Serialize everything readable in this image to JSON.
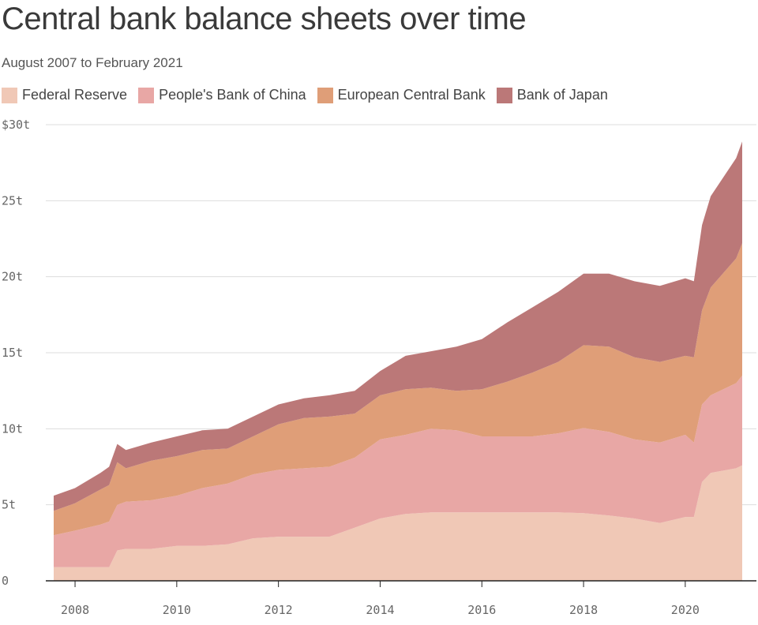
{
  "header": {
    "title": "Central bank balance sheets over time",
    "subtitle": "August 2007 to February 2021"
  },
  "colors": {
    "fed": "#f0c8b6",
    "pboc": "#e8a7a5",
    "ecb": "#df9e78",
    "boj": "#bb7878",
    "grid": "#dddddd",
    "axis": "#222222"
  },
  "chart_data": {
    "type": "area",
    "stacked": true,
    "title": "Central bank balance sheets over time",
    "subtitle": "August 2007 to February 2021",
    "xlabel": "",
    "ylabel": "",
    "xlim": [
      2007.58,
      2021.12
    ],
    "ylim": [
      0,
      30
    ],
    "x_ticks": [
      2008,
      2010,
      2012,
      2014,
      2016,
      2018,
      2020
    ],
    "x_tick_labels": [
      "2008",
      "2010",
      "2012",
      "2014",
      "2016",
      "2018",
      "2020"
    ],
    "y_ticks": [
      0,
      5,
      10,
      15,
      20,
      25,
      30
    ],
    "y_tick_labels": [
      "0",
      "5t",
      "10t",
      "15t",
      "20t",
      "25t",
      "$30t"
    ],
    "grid": true,
    "legend": "top",
    "x": [
      2007.58,
      2008.0,
      2008.5,
      2008.67,
      2008.83,
      2009.0,
      2009.5,
      2010.0,
      2010.5,
      2011.0,
      2011.5,
      2012.0,
      2012.5,
      2013.0,
      2013.5,
      2014.0,
      2014.5,
      2015.0,
      2015.5,
      2016.0,
      2016.5,
      2017.0,
      2017.5,
      2018.0,
      2018.5,
      2019.0,
      2019.5,
      2020.0,
      2020.17,
      2020.33,
      2020.5,
      2021.0,
      2021.12
    ],
    "series": [
      {
        "name": "Federal Reserve",
        "color_key": "fed",
        "values": [
          0.9,
          0.9,
          0.9,
          0.9,
          2.0,
          2.1,
          2.1,
          2.3,
          2.3,
          2.4,
          2.8,
          2.9,
          2.9,
          2.9,
          3.5,
          4.1,
          4.4,
          4.5,
          4.5,
          4.5,
          4.5,
          4.5,
          4.5,
          4.45,
          4.3,
          4.1,
          3.8,
          4.2,
          4.2,
          6.5,
          7.1,
          7.4,
          7.6
        ]
      },
      {
        "name": "People's Bank of China",
        "color_key": "pboc",
        "values": [
          2.1,
          2.4,
          2.8,
          3.0,
          3.0,
          3.1,
          3.2,
          3.3,
          3.8,
          4.0,
          4.2,
          4.4,
          4.5,
          4.6,
          4.6,
          5.2,
          5.2,
          5.5,
          5.4,
          5.0,
          5.0,
          5.0,
          5.2,
          5.6,
          5.5,
          5.2,
          5.3,
          5.4,
          4.9,
          5.1,
          5.1,
          5.6,
          5.9
        ]
      },
      {
        "name": "European Central Bank",
        "color_key": "ecb",
        "values": [
          1.6,
          1.8,
          2.3,
          2.4,
          2.8,
          2.2,
          2.6,
          2.6,
          2.5,
          2.3,
          2.5,
          3.0,
          3.3,
          3.3,
          2.9,
          2.9,
          3.0,
          2.7,
          2.6,
          3.1,
          3.6,
          4.2,
          4.7,
          5.45,
          5.6,
          5.4,
          5.3,
          5.2,
          5.6,
          6.2,
          7.1,
          8.2,
          8.7
        ]
      },
      {
        "name": "Bank of Japan",
        "color_key": "boj",
        "values": [
          1.0,
          1.0,
          1.1,
          1.2,
          1.2,
          1.2,
          1.2,
          1.3,
          1.3,
          1.3,
          1.3,
          1.3,
          1.3,
          1.4,
          1.5,
          1.6,
          2.2,
          2.4,
          2.9,
          3.3,
          3.9,
          4.3,
          4.6,
          4.7,
          4.8,
          5.0,
          5.0,
          5.1,
          5.0,
          5.6,
          6.0,
          6.6,
          6.7
        ]
      }
    ]
  }
}
